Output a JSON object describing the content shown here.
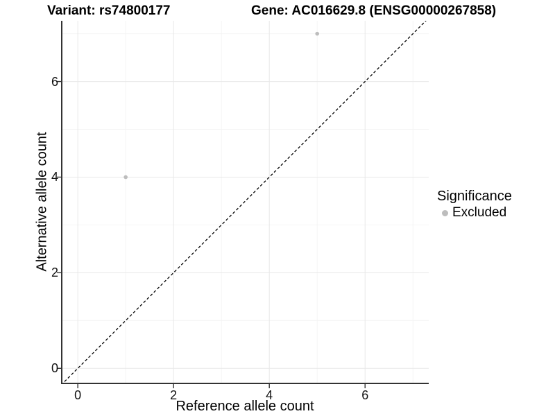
{
  "chart_data": {
    "type": "scatter",
    "titles": {
      "left": "Variant: rs74800177",
      "right": "Gene: AC016629.8 (ENSG00000267858)"
    },
    "xlabel": "Reference allele count",
    "ylabel": "Alternative allele count",
    "xlim": [
      -0.35,
      7.33
    ],
    "ylim": [
      -0.33,
      7.27
    ],
    "x_major_ticks": [
      0,
      2,
      4,
      6
    ],
    "y_major_ticks": [
      0,
      2,
      4,
      6
    ],
    "x_minor_gridlines": [
      1,
      3,
      5,
      7
    ],
    "y_minor_gridlines": [
      1,
      3,
      5,
      7
    ],
    "grid": true,
    "identity_line": {
      "equation": "y = x",
      "style": "dashed",
      "color": "#000000"
    },
    "series": [
      {
        "name": "Excluded",
        "color": "#bdbdbd",
        "points": [
          {
            "x": 1,
            "y": 4
          },
          {
            "x": 5,
            "y": 7
          }
        ]
      }
    ],
    "legend": {
      "title": "Significance",
      "position": "right",
      "entries": [
        {
          "label": "Excluded",
          "color": "#bdbdbd"
        }
      ]
    }
  },
  "colors": {
    "background": "#ffffff",
    "axis_line": "#333333",
    "tick_mark": "#333333",
    "grid_major": "#e8e8e8",
    "grid_minor": "#f4f4f4",
    "text": "#000000"
  }
}
